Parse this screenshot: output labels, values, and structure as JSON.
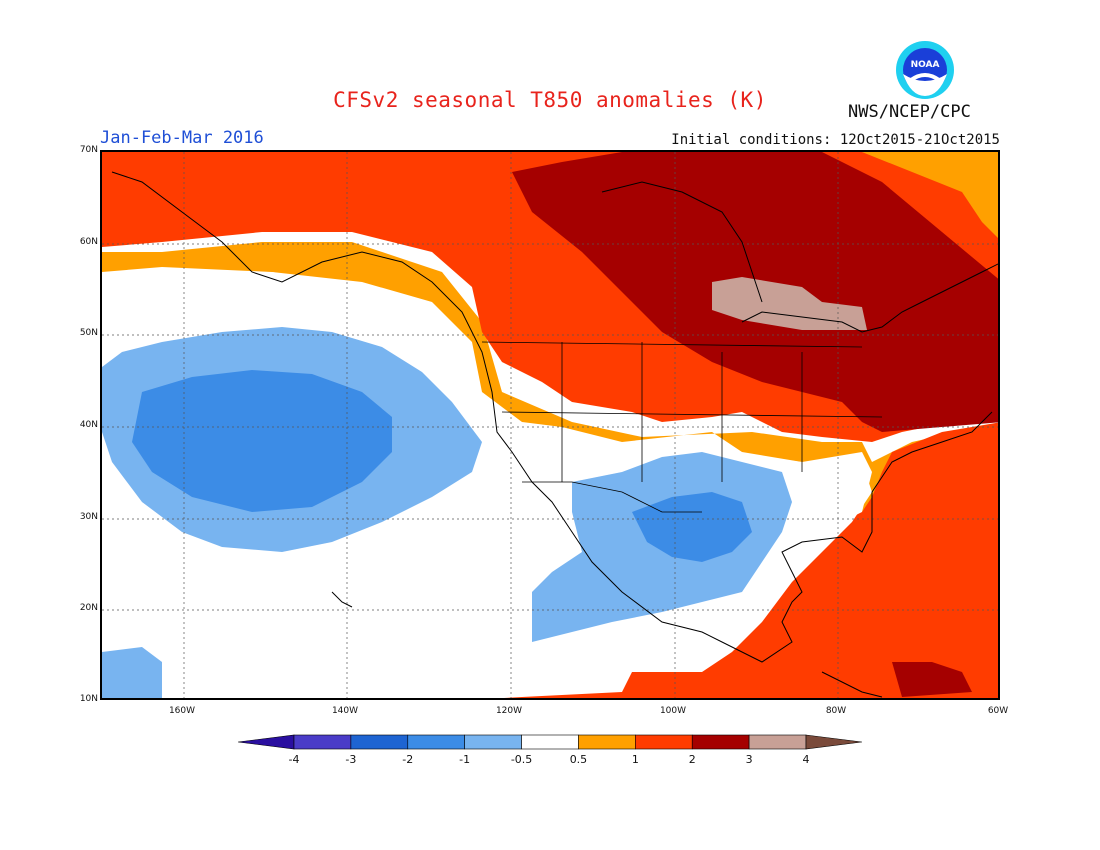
{
  "title": "CFSv2 seasonal T850 anomalies (K)",
  "period": "Jan-Feb-Mar 2016",
  "initial_conditions": "Initial conditions: 12Oct2015-21Oct2015",
  "agency": "NWS/NCEP/CPC",
  "logo_text": "NOAA",
  "lat_labels": [
    "70N",
    "60N",
    "50N",
    "40N",
    "30N",
    "20N",
    "10N"
  ],
  "lon_labels": [
    "160W",
    "140W",
    "120W",
    "100W",
    "80W",
    "60W"
  ],
  "colorbar": {
    "labels": [
      "-4",
      "-3",
      "-2",
      "-1",
      "-0.5",
      "0.5",
      "1",
      "2",
      "3",
      "4"
    ],
    "colors": [
      "#2a0fa0",
      "#4a3cc8",
      "#1e64d2",
      "#3c8ce6",
      "#78b4f0",
      "#ffffff",
      "#ffa000",
      "#ff3c00",
      "#a50000",
      "#c8a096",
      "#7a4a3a"
    ]
  },
  "colors": {
    "title": "#e8231c",
    "period": "#1f4fd6"
  }
}
